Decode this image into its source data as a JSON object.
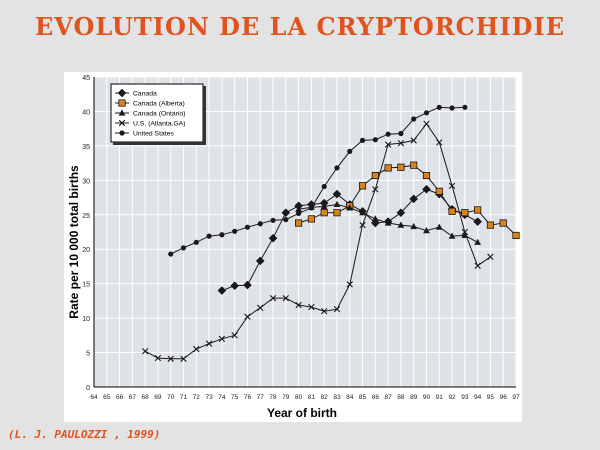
{
  "slide": {
    "title": "EVOLUTION DE LA CRYPTORCHIDIE",
    "citation": "(L. J. PAULOZZI , 1999)"
  },
  "chart_data": {
    "type": "line",
    "xlabel": "Year of birth",
    "ylabel": "Rate per 10 000 total births",
    "xlim": [
      64,
      97
    ],
    "ylim": [
      0,
      45
    ],
    "x_ticks": [
      64,
      65,
      66,
      67,
      68,
      69,
      70,
      71,
      72,
      73,
      74,
      75,
      76,
      77,
      78,
      79,
      80,
      81,
      82,
      83,
      84,
      85,
      86,
      87,
      88,
      89,
      90,
      91,
      92,
      93,
      94,
      95,
      96,
      97
    ],
    "y_ticks": [
      0,
      5,
      10,
      15,
      20,
      25,
      30,
      35,
      40,
      45
    ],
    "grid": true,
    "legend_position": "top-left",
    "series": [
      {
        "name": "Canada",
        "marker": "diamond",
        "color": "#1a1a1a",
        "points": [
          [
            74,
            14
          ],
          [
            75,
            14.7
          ],
          [
            76,
            14.8
          ],
          [
            77,
            18.3
          ],
          [
            78,
            21.6
          ],
          [
            79,
            25.3
          ],
          [
            80,
            26.3
          ],
          [
            81,
            26.5
          ],
          [
            82,
            26.7
          ],
          [
            83,
            28
          ],
          [
            84,
            26.5
          ],
          [
            85,
            25.5
          ],
          [
            86,
            23.8
          ],
          [
            87,
            24
          ],
          [
            88,
            25.3
          ],
          [
            89,
            27.3
          ],
          [
            90,
            28.7
          ],
          [
            91,
            28
          ],
          [
            92,
            25.8
          ],
          [
            93,
            25
          ],
          [
            94,
            24
          ]
        ]
      },
      {
        "name": "Canada (Alberta)",
        "marker": "square",
        "color": "#d9831f",
        "points": [
          [
            80,
            23.8
          ],
          [
            81,
            24.4
          ],
          [
            82,
            25.3
          ],
          [
            83,
            25.3
          ],
          [
            84,
            26.3
          ],
          [
            85,
            29.2
          ],
          [
            86,
            30.7
          ],
          [
            87,
            31.8
          ],
          [
            88,
            31.9
          ],
          [
            89,
            32.2
          ],
          [
            90,
            30.7
          ],
          [
            91,
            28.4
          ],
          [
            92,
            25.5
          ],
          [
            93,
            25.3
          ],
          [
            94,
            25.7
          ],
          [
            95,
            23.5
          ],
          [
            96,
            23.8
          ],
          [
            97,
            22
          ]
        ]
      },
      {
        "name": "Canada (Ontario)",
        "marker": "triangle",
        "color": "#1a1a1a",
        "points": [
          [
            80,
            25.8
          ],
          [
            81,
            26.1
          ],
          [
            82,
            26.2
          ],
          [
            83,
            26.5
          ],
          [
            84,
            26
          ],
          [
            85,
            25.3
          ],
          [
            86,
            24.4
          ],
          [
            87,
            23.8
          ],
          [
            88,
            23.5
          ],
          [
            89,
            23.3
          ],
          [
            90,
            22.7
          ],
          [
            91,
            23.2
          ],
          [
            92,
            21.9
          ],
          [
            93,
            22
          ],
          [
            94,
            21
          ]
        ]
      },
      {
        "name": "U.S. (Atlanta,GA)",
        "marker": "x",
        "color": "#1a1a1a",
        "points": [
          [
            68,
            5.2
          ],
          [
            69,
            4.2
          ],
          [
            70,
            4.1
          ],
          [
            71,
            4.1
          ],
          [
            72,
            5.5
          ],
          [
            73,
            6.3
          ],
          [
            74,
            7
          ],
          [
            75,
            7.5
          ],
          [
            76,
            10.2
          ],
          [
            77,
            11.5
          ],
          [
            78,
            12.9
          ],
          [
            79,
            12.9
          ],
          [
            80,
            11.9
          ],
          [
            81,
            11.6
          ],
          [
            82,
            11
          ],
          [
            83,
            11.3
          ],
          [
            84,
            14.9
          ],
          [
            85,
            23.5
          ],
          [
            86,
            28.7
          ],
          [
            87,
            35.2
          ],
          [
            88,
            35.4
          ],
          [
            89,
            35.8
          ],
          [
            90,
            38.2
          ],
          [
            91,
            35.5
          ],
          [
            92,
            29.2
          ],
          [
            93,
            22.5
          ],
          [
            94,
            17.6
          ],
          [
            95,
            18.9
          ]
        ]
      },
      {
        "name": "United States",
        "marker": "dot",
        "color": "#1a1a1a",
        "points": [
          [
            70,
            19.3
          ],
          [
            71,
            20.2
          ],
          [
            72,
            21
          ],
          [
            73,
            21.9
          ],
          [
            74,
            22.1
          ],
          [
            75,
            22.6
          ],
          [
            76,
            23.2
          ],
          [
            77,
            23.7
          ],
          [
            78,
            24.2
          ],
          [
            79,
            24.3
          ],
          [
            80,
            25.2
          ],
          [
            81,
            26
          ],
          [
            82,
            29.1
          ],
          [
            83,
            31.8
          ],
          [
            84,
            34.2
          ],
          [
            85,
            35.8
          ],
          [
            86,
            35.9
          ],
          [
            87,
            36.7
          ],
          [
            88,
            36.8
          ],
          [
            89,
            38.9
          ],
          [
            90,
            39.8
          ],
          [
            91,
            40.6
          ],
          [
            92,
            40.5
          ],
          [
            93,
            40.6
          ]
        ]
      }
    ]
  }
}
